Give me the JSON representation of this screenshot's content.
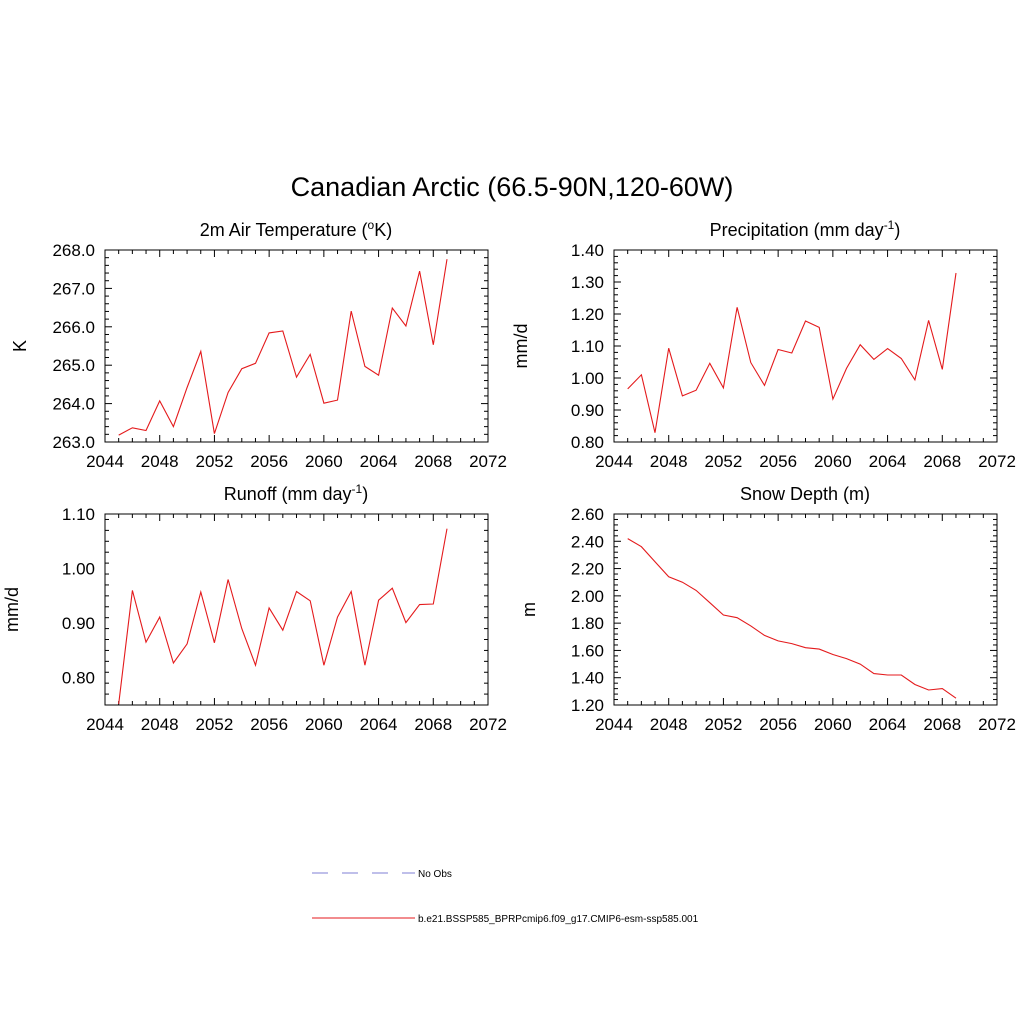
{
  "title": "Canadian Arctic (66.5-90N,120-60W)",
  "colors": {
    "model": "#e41a1c",
    "obs": "#9999dd",
    "axis": "#000000"
  },
  "legend": {
    "obs_label": "No Obs",
    "model_label": "b.e21.BSSP585_BPRPcmip6.f09_g17.CMIP6-esm-ssp585.001"
  },
  "chart_data": [
    {
      "type": "line",
      "title_main": "2m Air Temperature (",
      "title_sup": "o",
      "title_tail": "K)",
      "ylabel": "K",
      "xlim": [
        2044,
        2072
      ],
      "ylim": [
        263.0,
        268.0
      ],
      "xticks": [
        "2044",
        "2048",
        "2052",
        "2056",
        "2060",
        "2064",
        "2068",
        "2072"
      ],
      "yticks": [
        "263.0",
        "264.0",
        "265.0",
        "266.0",
        "267.0",
        "268.0"
      ],
      "x": [
        2045,
        2046,
        2047,
        2048,
        2049,
        2050,
        2051,
        2052,
        2053,
        2054,
        2055,
        2056,
        2057,
        2058,
        2059,
        2060,
        2061,
        2062,
        2063,
        2064,
        2065,
        2066,
        2067,
        2068,
        2069
      ],
      "values": [
        263.18,
        263.37,
        263.3,
        264.07,
        263.4,
        264.42,
        265.36,
        263.22,
        264.29,
        264.91,
        265.05,
        265.84,
        265.89,
        264.69,
        265.28,
        264.01,
        264.09,
        266.41,
        264.97,
        264.74,
        266.49,
        266.02,
        267.45,
        265.53,
        267.76
      ]
    },
    {
      "type": "line",
      "title_main": "Precipitation (mm day",
      "title_sup": "-1",
      "title_tail": ")",
      "ylabel": "mm/d",
      "xlim": [
        2044,
        2072
      ],
      "ylim": [
        0.8,
        1.4
      ],
      "xticks": [
        "2044",
        "2048",
        "2052",
        "2056",
        "2060",
        "2064",
        "2068",
        "2072"
      ],
      "yticks": [
        "0.80",
        "0.90",
        "1.00",
        "1.10",
        "1.20",
        "1.30",
        "1.40"
      ],
      "x": [
        2045,
        2046,
        2047,
        2048,
        2049,
        2050,
        2051,
        2052,
        2053,
        2054,
        2055,
        2056,
        2057,
        2058,
        2059,
        2060,
        2061,
        2062,
        2063,
        2064,
        2065,
        2066,
        2067,
        2068,
        2069
      ],
      "values": [
        0.966,
        1.01,
        0.829,
        1.093,
        0.944,
        0.962,
        1.046,
        0.969,
        1.221,
        1.048,
        0.977,
        1.089,
        1.078,
        1.178,
        1.158,
        0.934,
        1.03,
        1.104,
        1.058,
        1.092,
        1.061,
        0.994,
        1.18,
        1.027,
        1.328
      ]
    },
    {
      "type": "line",
      "title_main": "Runoff (mm day",
      "title_sup": "-1",
      "title_tail": ")",
      "ylabel": "mm/d",
      "xlim": [
        2044,
        2072
      ],
      "ylim": [
        0.75,
        1.1
      ],
      "xticks": [
        "2044",
        "2048",
        "2052",
        "2056",
        "2060",
        "2064",
        "2068",
        "2072"
      ],
      "yticks": [
        "0.80",
        "0.90",
        "1.00",
        "1.10"
      ],
      "ytick_values": [
        0.8,
        0.9,
        1.0,
        1.1
      ],
      "x": [
        2045,
        2046,
        2047,
        2048,
        2049,
        2050,
        2051,
        2052,
        2053,
        2054,
        2055,
        2056,
        2057,
        2058,
        2059,
        2060,
        2061,
        2062,
        2063,
        2064,
        2065,
        2066,
        2067,
        2068,
        2069
      ],
      "values": [
        0.752,
        0.96,
        0.865,
        0.911,
        0.827,
        0.862,
        0.957,
        0.864,
        0.98,
        0.89,
        0.823,
        0.928,
        0.887,
        0.958,
        0.941,
        0.823,
        0.911,
        0.958,
        0.823,
        0.942,
        0.964,
        0.901,
        0.934,
        0.935,
        1.073
      ]
    },
    {
      "type": "line",
      "title_main": "Snow Depth (m)",
      "title_sup": "",
      "title_tail": "",
      "ylabel": "m",
      "xlim": [
        2044,
        2072
      ],
      "ylim": [
        1.2,
        2.6
      ],
      "xticks": [
        "2044",
        "2048",
        "2052",
        "2056",
        "2060",
        "2064",
        "2068",
        "2072"
      ],
      "yticks": [
        "1.20",
        "1.40",
        "1.60",
        "1.80",
        "2.00",
        "2.20",
        "2.40",
        "2.60"
      ],
      "x": [
        2045,
        2046,
        2047,
        2048,
        2049,
        2050,
        2051,
        2052,
        2053,
        2054,
        2055,
        2056,
        2057,
        2058,
        2059,
        2060,
        2061,
        2062,
        2063,
        2064,
        2065,
        2066,
        2067,
        2068,
        2069
      ],
      "values": [
        2.42,
        2.36,
        2.25,
        2.14,
        2.1,
        2.04,
        1.95,
        1.86,
        1.84,
        1.78,
        1.71,
        1.67,
        1.65,
        1.62,
        1.61,
        1.57,
        1.54,
        1.5,
        1.43,
        1.42,
        1.42,
        1.35,
        1.31,
        1.32,
        1.25
      ]
    }
  ]
}
